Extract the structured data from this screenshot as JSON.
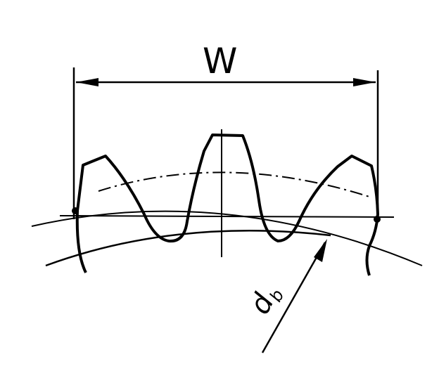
{
  "diagram": {
    "dimension_label": "W",
    "diameter_label": "d",
    "diameter_subscript": "b",
    "colors": {
      "line": "#000000",
      "background": "#ffffff"
    }
  }
}
